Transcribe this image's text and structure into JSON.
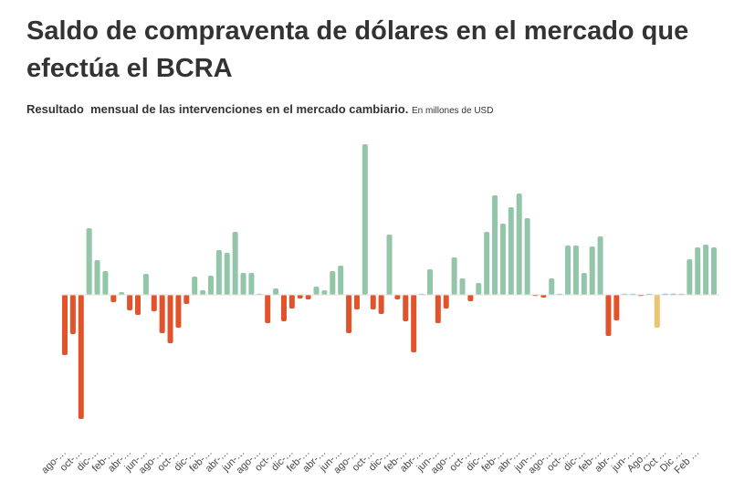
{
  "chart_data": {
    "type": "bar",
    "title": "Saldo de compraventa de dólares en el mercado que efectúa el BCRA",
    "subtitle": "Resultado  mensual de las intervenciones en el mercado cambiario.",
    "unit_note": "En millones de USD",
    "xlabel": "",
    "ylabel": "",
    "ylim": [
      -1400,
      1700
    ],
    "grid": false,
    "legend": "none",
    "tick_labels": [
      "ago-…",
      "oct-…",
      "dic-…",
      "feb-…",
      "abr-…",
      "jun-…",
      "ago-…",
      "oct-…",
      "dic-…",
      "feb-…",
      "abr-…",
      "jun-…",
      "ago-…",
      "oct-…",
      "dic-…",
      "feb-…",
      "abr-…",
      "jun-…",
      "ago-…",
      "oct-…",
      "dic-…",
      "feb-…",
      "abr-…",
      "jun-…",
      "ago-…",
      "oct-…",
      "dic-…",
      "feb-…",
      "abr-…",
      "jun-…",
      "ago-…",
      "oct-…",
      "dic-…",
      "feb-…",
      "abr-…",
      "jun-…",
      "Ago…",
      "Oct …",
      "Dic …",
      "Feb …"
    ],
    "values": [
      -660,
      -430,
      -1360,
      730,
      380,
      260,
      -80,
      30,
      -170,
      -220,
      230,
      -180,
      -420,
      -530,
      -360,
      -100,
      200,
      50,
      210,
      490,
      460,
      690,
      240,
      240,
      5,
      -310,
      70,
      -290,
      -150,
      -40,
      -50,
      90,
      50,
      260,
      320,
      -420,
      -160,
      1650,
      -160,
      -210,
      660,
      -50,
      -290,
      -630,
      10,
      280,
      -310,
      -150,
      410,
      180,
      -70,
      130,
      690,
      1090,
      780,
      960,
      1110,
      840,
      -10,
      -30,
      180,
      5,
      540,
      540,
      240,
      530,
      640,
      -450,
      -280,
      3,
      3,
      -5,
      3,
      -360,
      3,
      3,
      3,
      390,
      520,
      550,
      520
    ],
    "colors": {
      "positive": "#93C5A9",
      "negative": "#E0532B",
      "baseline": "#DDDDDD"
    },
    "special_bar_colors": {
      "73": "#E8C56E",
      "74": "#7BB0D8",
      "75": "#A88BC8"
    }
  }
}
